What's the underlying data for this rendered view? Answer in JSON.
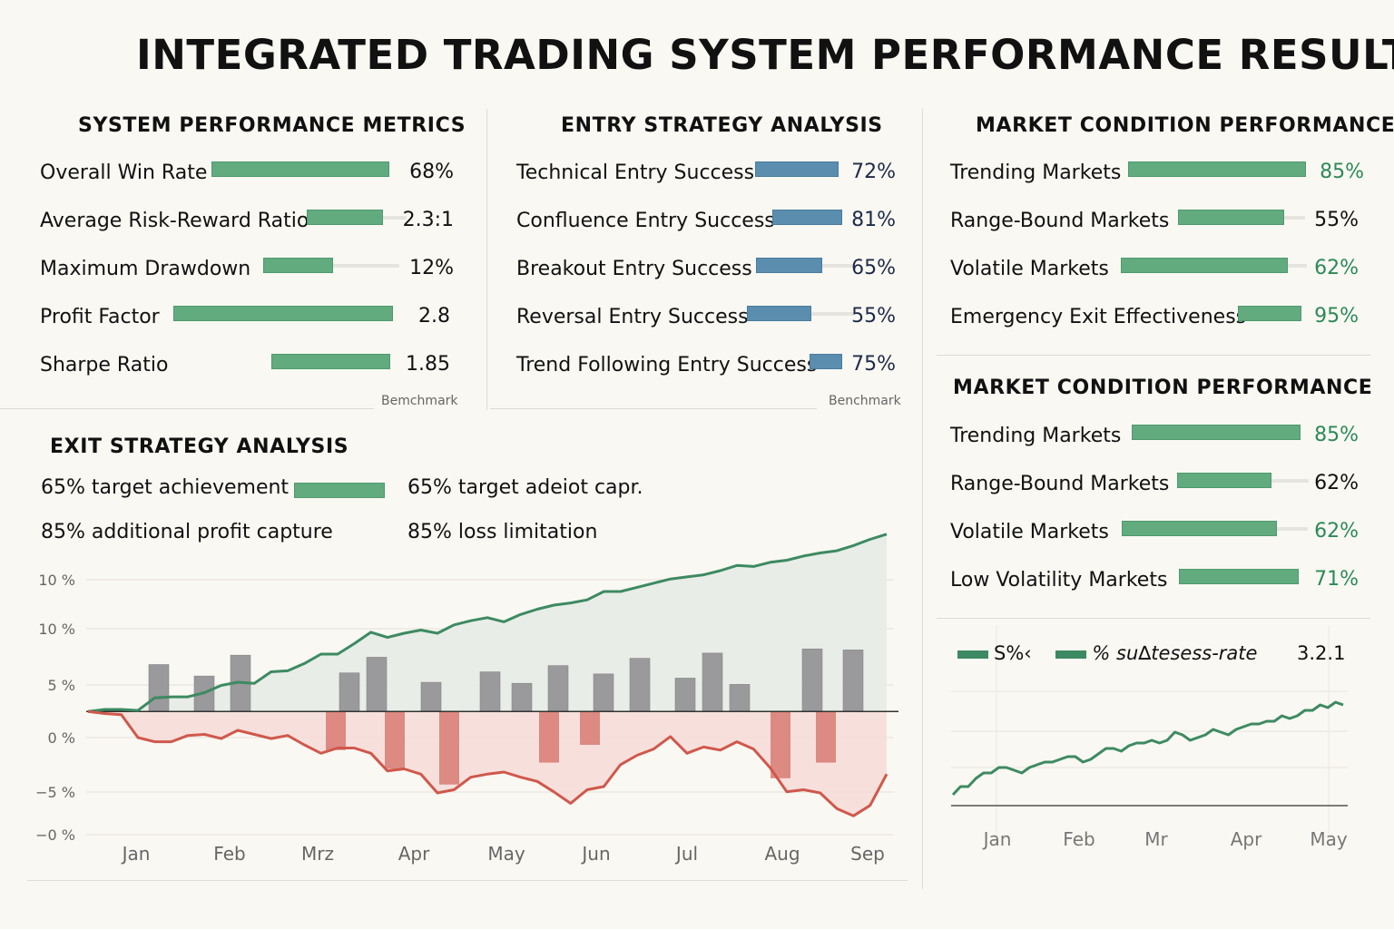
{
  "title": "INTEGRATED TRADING SYSTEM PERFORMANCE RESULTS",
  "system_metrics": {
    "title": "SYSTEM PERFORMANCE METRICS",
    "benchmark_label": "Bemchmark",
    "items": [
      {
        "label": "Overall Win Rate",
        "value": "68%",
        "fill": 1.0
      },
      {
        "label": "Average Risk-Reward Ratio",
        "value": "2.3:1",
        "fill": 0.82
      },
      {
        "label": "Maximum Drawdown",
        "value": "12%",
        "fill": 0.5
      },
      {
        "label": "Profit Factor",
        "value": "2.8",
        "fill": 1.0
      },
      {
        "label": "Sharpe Ratio",
        "value": "1.85",
        "fill": 1.0
      }
    ]
  },
  "entry_strategy": {
    "title": "ENTRY STRATEGY ANALYSIS",
    "benchmark_label": "Benchmark",
    "items": [
      {
        "label": "Technical Entry Success",
        "value": "72%",
        "fill": 1.0
      },
      {
        "label": "Confluence Entry Success",
        "value": "81%",
        "fill": 1.0
      },
      {
        "label": "Breakout Entry Success",
        "value": "65%",
        "fill": 0.65
      },
      {
        "label": "Reversal Entry Success",
        "value": "55%",
        "fill": 0.6
      },
      {
        "label": "Trend Following Entry Success",
        "value": "75%",
        "fill": 1.0
      }
    ]
  },
  "market_condition_1": {
    "title": "MARKET CONDITION PERFORMANCE",
    "items": [
      {
        "label": "Trending Markets",
        "value": "85%",
        "fill": 1.0,
        "highlight": true
      },
      {
        "label": "Range-Bound Markets",
        "value": "55%",
        "fill": 0.84,
        "highlight": false
      },
      {
        "label": "Volatile Markets",
        "value": "62%",
        "fill": 0.93,
        "highlight": true
      },
      {
        "label": "Emergency Exit Effectiveness",
        "value": "95%",
        "fill": 1.0,
        "highlight": true
      }
    ]
  },
  "market_condition_2": {
    "title": "MARKET CONDITION PERFORMANCE",
    "items": [
      {
        "label": "Trending Markets",
        "value": "85%",
        "fill": 1.0,
        "highlight": true
      },
      {
        "label": "Range-Bound Markets",
        "value": "62%",
        "fill": 0.7,
        "highlight": false
      },
      {
        "label": "Volatile Markets",
        "value": "62%",
        "fill": 0.85,
        "highlight": true
      },
      {
        "label": "Low Volatility Markets",
        "value": "71%",
        "fill": 1.0,
        "highlight": true
      }
    ]
  },
  "exit_strategy": {
    "title": "EXIT STRATEGY ANALYSIS",
    "items": [
      {
        "pct": "65%",
        "text": "target achievement"
      },
      {
        "pct": "65%",
        "text": "target adeiot capr."
      },
      {
        "pct": "85%",
        "text": "additional profit capture"
      },
      {
        "pct": "85%",
        "text": "loss limitation"
      }
    ]
  },
  "colors": {
    "green": "#3d8a62",
    "green_fill": "#e6ebe5",
    "red": "#d0584c",
    "red_fill": "#f6dcd7",
    "red_bar": "#d77a72",
    "gray_bar": "#9a999b",
    "bar_green": "#62ab7f",
    "bar_blue": "#5b8daf"
  },
  "small_chart_legend": {
    "series1": "S%‹",
    "series2": "% su∆tesess-rate",
    "value": "3.2.1"
  },
  "chart_data": [
    {
      "type": "line",
      "title": "EXIT STRATEGY ANALYSIS",
      "ytick_labels": [
        "10 %",
        "10 %",
        "5 %",
        "0 %",
        "−5 %",
        "−0 %"
      ],
      "categories": [
        "Jan",
        "Feb",
        "Mrz",
        "Apr",
        "May",
        "Jun",
        "Jul",
        "Aug",
        "Sep"
      ],
      "ylim": [
        -10,
        15
      ],
      "grid": true,
      "baseline": 2.5,
      "series": [
        {
          "name": "equity",
          "kind": "line-area",
          "color": "#3d8a62",
          "values": [
            2.5,
            2.7,
            2.7,
            2.6,
            3.8,
            3.9,
            3.9,
            4.3,
            5.0,
            5.3,
            5.2,
            6.3,
            6.4,
            7.1,
            8.0,
            8.0,
            9.0,
            10.1,
            9.6,
            10.0,
            10.3,
            10.0,
            10.8,
            11.2,
            11.5,
            11.1,
            11.8,
            12.3,
            12.7,
            12.9,
            13.2,
            14.0,
            14.0,
            14.4,
            14.8,
            15.2,
            15.4,
            15.6,
            16.0,
            16.5,
            16.4,
            16.8,
            17.0,
            17.4,
            17.7,
            17.9,
            18.4,
            19.0,
            19.5
          ]
        },
        {
          "name": "drawdown",
          "kind": "line-area",
          "color": "#d0584c",
          "values": [
            2.5,
            2.3,
            2.2,
            0.0,
            -0.4,
            -0.4,
            0.2,
            0.3,
            -0.1,
            0.7,
            0.3,
            -0.1,
            0.2,
            -0.7,
            -1.5,
            -1.0,
            -1.0,
            -1.5,
            -3.2,
            -3.0,
            -3.5,
            -5.3,
            -5.0,
            -3.8,
            -3.5,
            -3.3,
            -3.8,
            -4.2,
            -5.2,
            -6.3,
            -5.0,
            -4.7,
            -2.6,
            -1.7,
            -1.1,
            0.1,
            -1.5,
            -0.9,
            -1.2,
            -0.4,
            -1.1,
            -2.9,
            -5.2,
            -5.0,
            -5.3,
            -6.8,
            -7.5,
            -6.5,
            -3.5
          ]
        },
        {
          "name": "monthly-positive",
          "kind": "bar",
          "color": "#9a999b",
          "positions": [
            0.1,
            0.6,
            1.0,
            2.2,
            2.5,
            3.1,
            3.75,
            4.1,
            4.5,
            5.0,
            5.4,
            5.9,
            6.2,
            6.5,
            7.3,
            7.75
          ],
          "values": [
            4.5,
            3.4,
            5.4,
            3.7,
            5.2,
            2.8,
            3.8,
            2.7,
            4.4,
            3.6,
            5.1,
            3.2,
            5.6,
            2.6,
            6.0,
            5.9
          ]
        },
        {
          "name": "monthly-negative",
          "kind": "bar",
          "color": "#d77a72",
          "positions": [
            2.05,
            2.7,
            3.3,
            4.4,
            4.85,
            6.95,
            7.45
          ],
          "values": [
            -3.7,
            -5.5,
            -7.0,
            -4.9,
            -3.2,
            -6.4,
            -4.9
          ]
        }
      ]
    },
    {
      "type": "line",
      "title": "",
      "categories": [
        "Jan",
        "Feb",
        "Mr",
        "Apr",
        "May"
      ],
      "legend": [
        "S%‹",
        "% su∆tesess-rate"
      ],
      "legend_position": "top",
      "annotation": "3.2.1",
      "grid": true,
      "ylim": [
        0,
        5
      ],
      "series": [
        {
          "name": "success-rate",
          "color": "#3d8a62",
          "values": [
            0.2,
            0.5,
            0.5,
            0.8,
            1.0,
            1.0,
            1.2,
            1.2,
            1.1,
            1.0,
            1.2,
            1.3,
            1.4,
            1.4,
            1.5,
            1.6,
            1.6,
            1.4,
            1.5,
            1.7,
            1.9,
            1.9,
            1.8,
            2.0,
            2.1,
            2.1,
            2.2,
            2.1,
            2.2,
            2.5,
            2.4,
            2.2,
            2.3,
            2.4,
            2.6,
            2.5,
            2.4,
            2.6,
            2.7,
            2.8,
            2.8,
            2.9,
            2.9,
            3.1,
            3.0,
            3.1,
            3.3,
            3.3,
            3.5,
            3.4,
            3.6,
            3.5
          ]
        }
      ]
    }
  ]
}
